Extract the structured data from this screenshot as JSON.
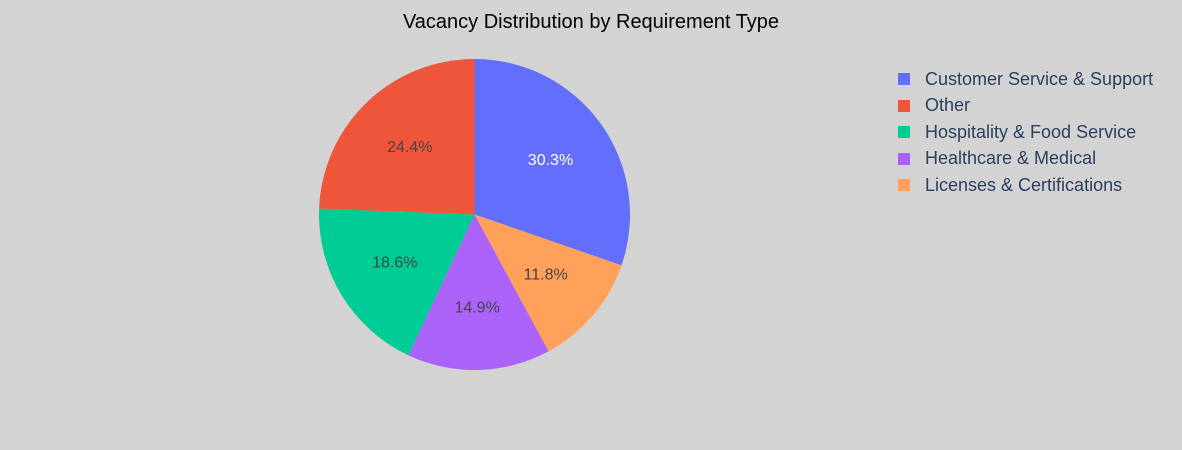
{
  "chart_data": {
    "type": "pie",
    "title": "Vacancy Distribution by Requirement Type",
    "slices": [
      {
        "label": "Customer Service & Support",
        "percent": 30.3,
        "percent_label": "30.3%",
        "color": "#636efa",
        "text_color": "#ffffff"
      },
      {
        "label": "Licenses & Certifications",
        "percent": 11.8,
        "percent_label": "11.8%",
        "color": "#ffa15a",
        "text_color": "#444444"
      },
      {
        "label": "Healthcare & Medical",
        "percent": 14.9,
        "percent_label": "14.9%",
        "color": "#ab63fa",
        "text_color": "#444444"
      },
      {
        "label": "Hospitality & Food Service",
        "percent": 18.6,
        "percent_label": "18.6%",
        "color": "#00cc96",
        "text_color": "#444444"
      },
      {
        "label": "Other",
        "percent": 24.4,
        "percent_label": "24.4%",
        "color": "#ef553b",
        "text_color": "#444444"
      }
    ],
    "legend": [
      {
        "label": "Customer Service & Support",
        "color": "#636efa"
      },
      {
        "label": "Other",
        "color": "#ef553b"
      },
      {
        "label": "Hospitality & Food Service",
        "color": "#00cc96"
      },
      {
        "label": "Healthcare & Medical",
        "color": "#ab63fa"
      },
      {
        "label": "Licenses & Certifications",
        "color": "#ffa15a"
      }
    ],
    "direction": "clockwise",
    "legend_position": "top-right",
    "background": "#d3d3d3"
  }
}
